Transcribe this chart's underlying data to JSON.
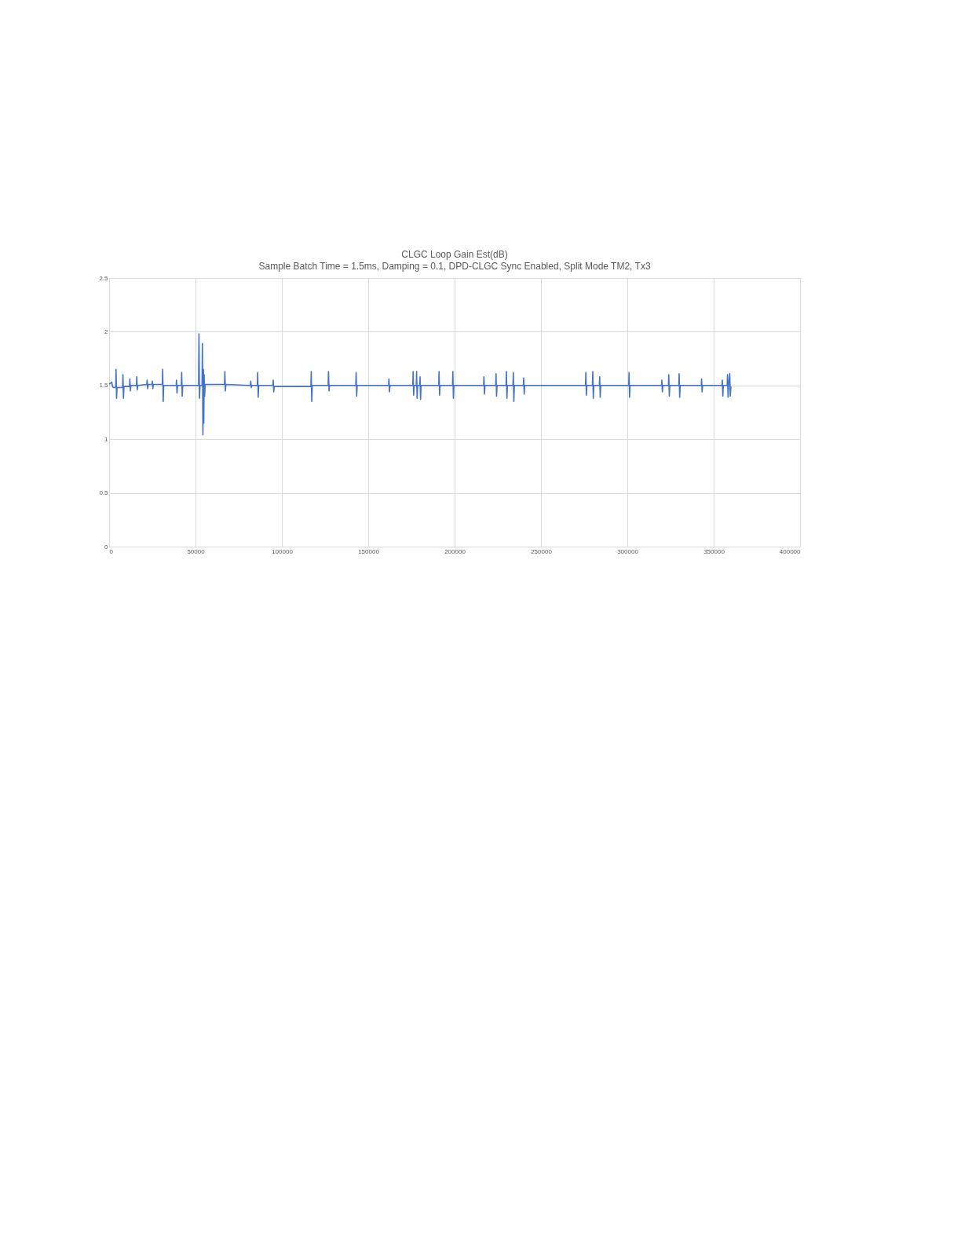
{
  "chart_data": {
    "type": "line",
    "title": "CLGC Loop Gain Est(dB)",
    "subtitle": "Sample Batch Time = 1.5ms, Damping = 0.1, DPD-CLGC Sync Enabled, Split Mode TM2, Tx3",
    "x": [
      0,
      1500,
      2000,
      2500,
      3800,
      4000,
      4300,
      4600,
      7800,
      8000,
      8300,
      8600,
      11800,
      12000,
      12300,
      12600,
      15800,
      16000,
      16300,
      16600,
      21800,
      22000,
      22300,
      22600,
      24800,
      25000,
      25300,
      25600,
      30800,
      31000,
      31300,
      31600,
      38800,
      39000,
      39300,
      39600,
      41800,
      42000,
      42300,
      42600,
      51800,
      52000,
      52300,
      52600,
      53800,
      54000,
      54300,
      54600,
      54800,
      55000,
      55300,
      55600,
      66800,
      67000,
      67300,
      67600,
      81800,
      82000,
      82300,
      82600,
      85800,
      86000,
      86300,
      86600,
      94800,
      95000,
      95300,
      95600,
      116800,
      117000,
      117300,
      117600,
      126800,
      127000,
      127300,
      127600,
      142800,
      143000,
      143300,
      143600,
      161800,
      162000,
      162300,
      162600,
      175800,
      176000,
      176300,
      176600,
      177800,
      178000,
      178300,
      178600,
      179800,
      180000,
      180300,
      180600,
      190800,
      191000,
      191300,
      191600,
      198800,
      199000,
      199300,
      199600,
      216800,
      217000,
      217300,
      217600,
      223800,
      224000,
      224300,
      224600,
      229800,
      230000,
      230300,
      230600,
      233800,
      234000,
      234300,
      234600,
      239800,
      240000,
      240300,
      240600,
      275800,
      276000,
      276300,
      276600,
      279800,
      280000,
      280300,
      280600,
      283800,
      284000,
      284300,
      284600,
      300800,
      301000,
      301300,
      301600,
      319800,
      320000,
      320300,
      320600,
      323800,
      324000,
      324300,
      324600,
      329800,
      330000,
      330300,
      330600,
      342800,
      343000,
      343300,
      343600,
      354800,
      355000,
      355300,
      355600,
      357800,
      358000,
      358300,
      358600,
      359300,
      359600,
      360000
    ],
    "values": [
      1.51,
      1.53,
      1.49,
      1.48,
      1.48,
      1.65,
      1.38,
      1.48,
      1.48,
      1.6,
      1.38,
      1.49,
      1.49,
      1.56,
      1.45,
      1.5,
      1.5,
      1.58,
      1.46,
      1.5,
      1.51,
      1.55,
      1.47,
      1.51,
      1.51,
      1.54,
      1.47,
      1.51,
      1.51,
      1.65,
      1.35,
      1.5,
      1.5,
      1.55,
      1.43,
      1.5,
      1.5,
      1.62,
      1.4,
      1.5,
      1.5,
      1.98,
      1.38,
      1.5,
      1.5,
      1.89,
      1.04,
      1.65,
      1.15,
      1.6,
      1.4,
      1.51,
      1.51,
      1.63,
      1.45,
      1.51,
      1.5,
      1.54,
      1.48,
      1.5,
      1.5,
      1.62,
      1.39,
      1.5,
      1.5,
      1.55,
      1.44,
      1.49,
      1.49,
      1.63,
      1.35,
      1.5,
      1.5,
      1.63,
      1.45,
      1.5,
      1.5,
      1.62,
      1.4,
      1.5,
      1.5,
      1.56,
      1.44,
      1.5,
      1.5,
      1.63,
      1.41,
      1.5,
      1.5,
      1.63,
      1.38,
      1.5,
      1.5,
      1.58,
      1.37,
      1.5,
      1.5,
      1.63,
      1.41,
      1.5,
      1.5,
      1.63,
      1.38,
      1.5,
      1.5,
      1.58,
      1.42,
      1.5,
      1.5,
      1.61,
      1.4,
      1.5,
      1.5,
      1.63,
      1.38,
      1.5,
      1.5,
      1.62,
      1.35,
      1.5,
      1.5,
      1.57,
      1.42,
      1.5,
      1.5,
      1.62,
      1.41,
      1.5,
      1.5,
      1.63,
      1.38,
      1.5,
      1.5,
      1.58,
      1.39,
      1.5,
      1.5,
      1.62,
      1.39,
      1.5,
      1.5,
      1.55,
      1.44,
      1.5,
      1.5,
      1.6,
      1.4,
      1.5,
      1.5,
      1.61,
      1.39,
      1.5,
      1.5,
      1.56,
      1.44,
      1.5,
      1.5,
      1.55,
      1.4,
      1.5,
      1.5,
      1.6,
      1.39,
      1.5,
      1.61,
      1.4,
      1.49
    ],
    "color": "#4472c4",
    "xlim": [
      0,
      400000
    ],
    "xticks": [
      0,
      50000,
      100000,
      150000,
      200000,
      250000,
      300000,
      350000,
      400000
    ],
    "ylim": [
      0,
      2.5
    ],
    "yticks": [
      0,
      0.5,
      1,
      1.5,
      2,
      2.5
    ],
    "grid": true,
    "marker": "none",
    "line_style": "solid"
  }
}
